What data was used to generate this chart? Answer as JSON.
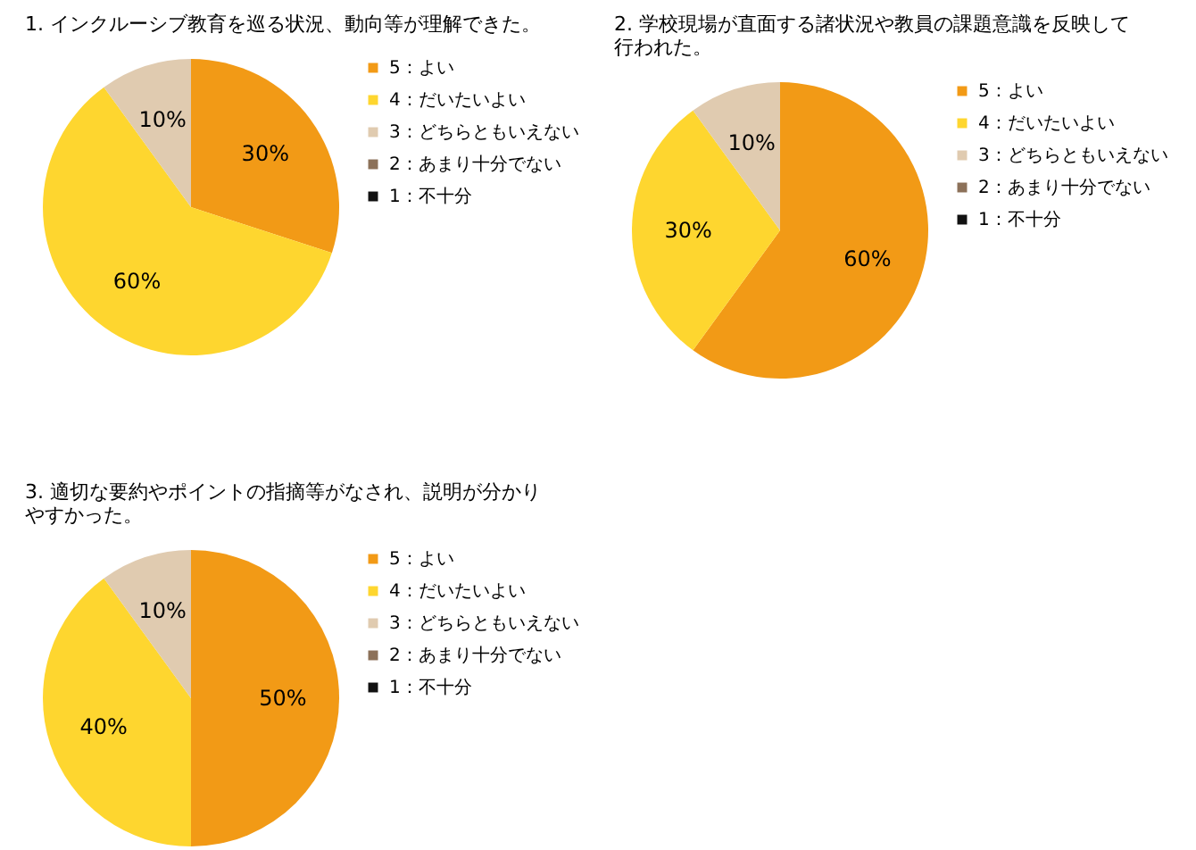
{
  "chart_data": [
    {
      "type": "pie",
      "title": "1. インクルーシブ教育を巡る状況、動向等が理解できた。",
      "categories": [
        "5：よい",
        "4：だいたいよい",
        "3：どちらともいえない",
        "2：あまり十分でない",
        "1：不十分"
      ],
      "values": [
        30,
        60,
        10,
        0,
        0
      ],
      "colors": [
        "#f29a16",
        "#fed62f",
        "#e0cbb0",
        "#8c7159",
        "#111111"
      ],
      "value_labels": [
        "30%",
        "60%",
        "10%",
        null,
        null
      ],
      "legend": "right"
    },
    {
      "type": "pie",
      "title": "2. 学校現場が直面する諸状況や教員の課題意識を反映して行われた。",
      "categories": [
        "5：よい",
        "4：だいたいよい",
        "3：どちらともいえない",
        "2：あまり十分でない",
        "1：不十分"
      ],
      "values": [
        60,
        30,
        10,
        0,
        0
      ],
      "colors": [
        "#f29a16",
        "#fed62f",
        "#e0cbb0",
        "#8c7159",
        "#111111"
      ],
      "value_labels": [
        "60%",
        "30%",
        "10%",
        null,
        null
      ],
      "legend": "right"
    },
    {
      "type": "pie",
      "title": "3. 適切な要約やポイントの指摘等がなされ、説明が分かりやすかった。",
      "categories": [
        "5：よい",
        "4：だいたいよい",
        "3：どちらともいえない",
        "2：あまり十分でない",
        "1：不十分"
      ],
      "values": [
        50,
        40,
        10,
        0,
        0
      ],
      "colors": [
        "#f29a16",
        "#fed62f",
        "#e0cbb0",
        "#8c7159",
        "#111111"
      ],
      "value_labels": [
        "50%",
        "40%",
        "10%",
        null,
        null
      ],
      "legend": "right"
    }
  ]
}
